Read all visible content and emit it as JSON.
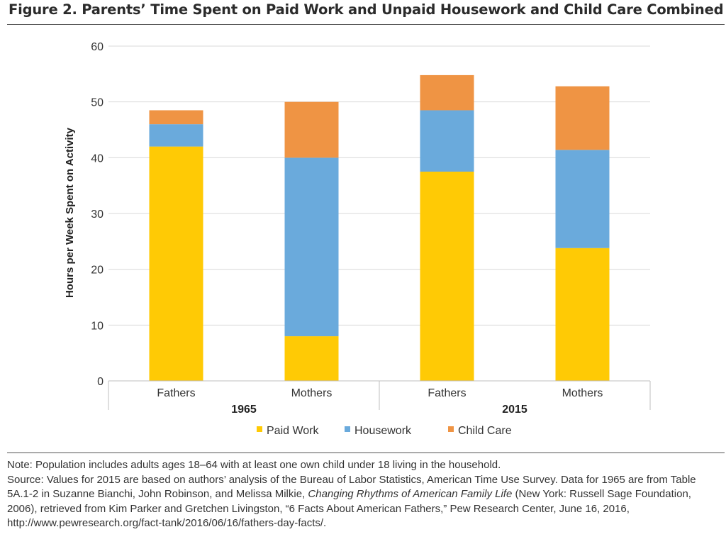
{
  "title": "Figure 2. Parents’ Time Spent on Paid Work and Unpaid Housework and Child Care Combined",
  "chart_data": {
    "type": "bar",
    "stacked": true,
    "title": "",
    "xlabel": "",
    "ylabel": "Hours per Week Spent on Activity",
    "ylim": [
      0,
      60
    ],
    "yticks": [
      0,
      10,
      20,
      30,
      40,
      50,
      60
    ],
    "grid": true,
    "legend_position": "bottom",
    "categories": [
      "Fathers",
      "Mothers",
      "Fathers",
      "Mothers"
    ],
    "groups": [
      {
        "label": "1965",
        "categories": [
          "Fathers",
          "Mothers"
        ]
      },
      {
        "label": "2015",
        "categories": [
          "Fathers",
          "Mothers"
        ]
      }
    ],
    "series": [
      {
        "name": "Paid Work",
        "color": "#FFCA05",
        "values": [
          42,
          8,
          37.5,
          23.8
        ]
      },
      {
        "name": "Housework",
        "color": "#6AAADC",
        "values": [
          4,
          32,
          11,
          17.6
        ]
      },
      {
        "name": "Child Care",
        "color": "#EF9444",
        "values": [
          2.5,
          10,
          6.3,
          11.4
        ]
      }
    ]
  },
  "notes": {
    "note": "Note: Population includes adults ages 18–64 with at least one own child under 18 living in the household.",
    "source_start": "Source: Values for 2015 are based on authors’ analysis of the Bureau of Labor Statistics, American Time Use Survey. Data for 1965 are from Table 5A.1-2 in Suzanne Bianchi, John Robinson, and Melissa Milkie, ",
    "source_book": "Changing Rhythms of American Family Life",
    "source_end": " (New York: Russell Sage Foundation, 2006), retrieved from Kim Parker and Gretchen Livingston, “6 Facts About American Fathers,” Pew Research Center, June 16, 2016, http://www.pewresearch.org/fact-tank/2016/06/16/fathers-day-facts/."
  }
}
